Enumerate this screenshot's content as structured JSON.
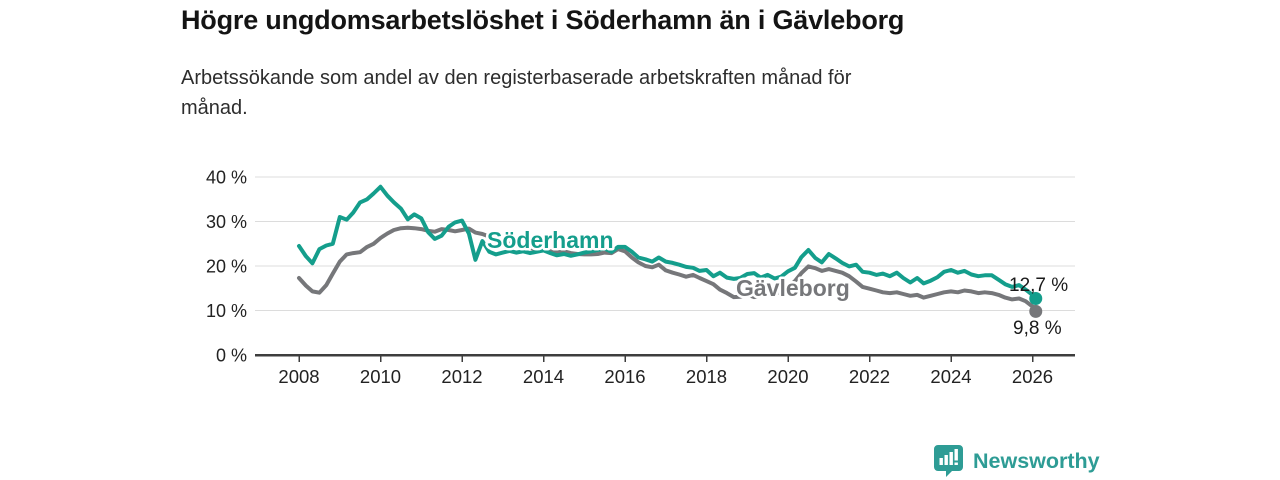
{
  "header": {
    "title": "Högre ungdomsarbetslöshet i Söderhamn än i Gävleborg",
    "subtitle_lines": [
      "Arbetssökande som andel av den registerbaserade arbetskraften månad för",
      "månad."
    ]
  },
  "chart_data": {
    "type": "line",
    "title": "Högre ungdomsarbetslöshet i Söderhamn än i Gävleborg",
    "subtitle": "Arbetssökande som andel av den registerbaserade arbetskraften månad för månad.",
    "xlabel": "",
    "ylabel": "",
    "y_unit": "%",
    "grid": "horizontal",
    "legend_position": "inline-labels",
    "ylim": [
      0,
      42
    ],
    "xlim": [
      2006.9,
      2027
    ],
    "y_tick_values": [
      0,
      10,
      20,
      30,
      40
    ],
    "y_tick_labels": [
      "0 %",
      "10 %",
      "20 %",
      "30 %",
      "40 %"
    ],
    "x_tick_values": [
      2008,
      2010,
      2012,
      2014,
      2016,
      2018,
      2020,
      2022,
      2024,
      2026
    ],
    "x_tick_labels": [
      "2008",
      "2010",
      "2012",
      "2014",
      "2016",
      "2018",
      "2020",
      "2022",
      "2024",
      "2026"
    ],
    "x": [
      2008,
      2008.17,
      2008.33,
      2008.5,
      2008.67,
      2008.83,
      2009,
      2009.17,
      2009.33,
      2009.5,
      2009.67,
      2009.83,
      2010,
      2010.17,
      2010.33,
      2010.5,
      2010.67,
      2010.83,
      2011,
      2011.17,
      2011.33,
      2011.5,
      2011.67,
      2011.83,
      2012,
      2012.17,
      2012.33,
      2012.5,
      2012.67,
      2012.83,
      2013,
      2013.17,
      2013.33,
      2013.5,
      2013.67,
      2013.83,
      2014,
      2014.17,
      2014.33,
      2014.5,
      2014.67,
      2014.83,
      2015,
      2015.17,
      2015.33,
      2015.5,
      2015.67,
      2015.83,
      2016,
      2016.17,
      2016.33,
      2016.5,
      2016.67,
      2016.83,
      2017,
      2017.17,
      2017.33,
      2017.5,
      2017.67,
      2017.83,
      2018,
      2018.17,
      2018.33,
      2018.5,
      2018.67,
      2018.83,
      2019,
      2019.17,
      2019.33,
      2019.5,
      2019.67,
      2019.83,
      2020,
      2020.17,
      2020.33,
      2020.5,
      2020.67,
      2020.83,
      2021,
      2021.17,
      2021.33,
      2021.5,
      2021.67,
      2021.83,
      2022,
      2022.17,
      2022.33,
      2022.5,
      2022.67,
      2022.83,
      2023,
      2023.17,
      2023.33,
      2023.5,
      2023.67,
      2023.83,
      2024,
      2024.17,
      2024.33,
      2024.5,
      2024.67,
      2024.83,
      2025,
      2025.17,
      2025.33,
      2025.5,
      2025.67,
      2025.83,
      2026,
      2026.08
    ],
    "series": [
      {
        "name": "Söderhamn",
        "color": "#149e8c",
        "end_label": "12,7 %",
        "end_value": 12.7,
        "values": [
          24.5,
          22.2,
          20.6,
          23.8,
          24.6,
          25.0,
          31.0,
          30.4,
          32.0,
          34.3,
          35.0,
          36.3,
          37.8,
          35.8,
          34.3,
          32.9,
          30.5,
          31.6,
          30.7,
          27.6,
          26.1,
          26.8,
          28.8,
          29.8,
          30.2,
          27.3,
          21.4,
          25.6,
          23.2,
          22.6,
          23.0,
          23.4,
          23.0,
          23.3,
          22.9,
          23.2,
          23.5,
          22.9,
          22.4,
          22.7,
          22.3,
          22.6,
          23.0,
          23.3,
          23.6,
          23.9,
          23.2,
          24.3,
          24.3,
          23.2,
          21.9,
          21.5,
          21.0,
          21.9,
          21.0,
          20.7,
          20.3,
          19.8,
          19.6,
          18.9,
          19.1,
          17.7,
          18.5,
          17.4,
          17.1,
          17.3,
          18.2,
          18.4,
          17.4,
          18.0,
          17.2,
          17.6,
          18.8,
          19.6,
          22.0,
          23.6,
          21.8,
          20.8,
          22.7,
          21.7,
          20.7,
          19.9,
          20.3,
          18.7,
          18.5,
          18.0,
          18.3,
          17.7,
          18.5,
          17.3,
          16.3,
          17.3,
          16.1,
          16.7,
          17.5,
          18.7,
          19.1,
          18.5,
          18.9,
          18.1,
          17.7,
          17.9,
          17.9,
          16.9,
          15.9,
          15.3,
          15.7,
          14.7,
          13.5,
          12.7
        ]
      },
      {
        "name": "Gävleborg",
        "color": "#76777a",
        "end_label": "9,8 %",
        "end_value": 9.8,
        "values": [
          17.3,
          15.6,
          14.3,
          14.0,
          15.7,
          18.3,
          21.0,
          22.6,
          22.9,
          23.1,
          24.3,
          25.0,
          26.3,
          27.3,
          28.1,
          28.5,
          28.6,
          28.5,
          28.3,
          27.9,
          27.7,
          28.3,
          28.1,
          27.8,
          28.1,
          28.4,
          27.5,
          27.2,
          26.6,
          26.0,
          25.4,
          25.0,
          24.6,
          24.3,
          24.0,
          23.8,
          23.6,
          23.3,
          23.0,
          23.3,
          22.9,
          22.7,
          22.6,
          22.6,
          22.7,
          23.0,
          22.9,
          23.8,
          23.3,
          21.9,
          20.8,
          20.0,
          19.7,
          20.3,
          19.0,
          18.5,
          18.1,
          17.6,
          18.0,
          17.3,
          16.6,
          15.9,
          14.7,
          13.9,
          13.0,
          13.1,
          13.6,
          13.0,
          13.4,
          14.0,
          13.8,
          14.2,
          15.2,
          16.6,
          18.4,
          19.9,
          19.5,
          18.9,
          19.3,
          18.9,
          18.5,
          17.7,
          16.5,
          15.3,
          14.9,
          14.5,
          14.1,
          13.9,
          14.1,
          13.7,
          13.3,
          13.5,
          12.9,
          13.3,
          13.7,
          14.1,
          14.3,
          14.1,
          14.5,
          14.3,
          13.9,
          14.1,
          13.9,
          13.5,
          12.9,
          12.5,
          12.7,
          12.1,
          10.9,
          9.8
        ]
      }
    ]
  },
  "footer": {
    "brand": "Newsworthy"
  },
  "colors": {
    "soderhamn_teal": "#149e8c",
    "gavleborg_gray": "#76777a",
    "axis": "#3d3d3d",
    "grid": "#dcdcdc",
    "text": "#141414",
    "brand_teal": "#2e9c95"
  }
}
